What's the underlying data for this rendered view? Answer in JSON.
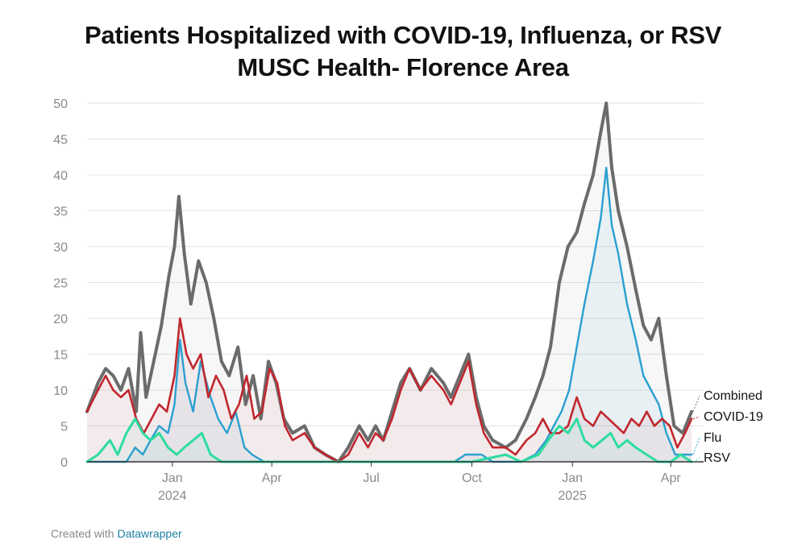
{
  "title_line1": "Patients Hospitalized with COVID-19, Influenza, or RSV",
  "title_line2": "MUSC Health- Florence Area",
  "footer": {
    "prefix": "Created with ",
    "brand": "Datawrapper"
  },
  "colors": {
    "Combined": "#6b6b6b",
    "COVID-19": "#c0272d",
    "Flu": "#2a9fd0",
    "RSV": "#2ddc9f",
    "grid": "#e3e3e3",
    "axis": "#333333"
  },
  "chart_data": {
    "type": "line",
    "title": "Patients Hospitalized with COVID-19, Influenza, or RSV",
    "subtitle": "MUSC Health- Florence Area",
    "x_start": "2023-10-15",
    "x_end": "2025-04-20",
    "ylim": [
      0,
      50
    ],
    "yticks": [
      0,
      5,
      10,
      15,
      20,
      25,
      30,
      35,
      40,
      45,
      50
    ],
    "xticks": [
      {
        "date": "2024-01-01",
        "label": "Jan",
        "sub": "2024"
      },
      {
        "date": "2024-04-01",
        "label": "Apr",
        "sub": ""
      },
      {
        "date": "2024-07-01",
        "label": "Jul",
        "sub": ""
      },
      {
        "date": "2024-10-01",
        "label": "Oct",
        "sub": ""
      },
      {
        "date": "2025-01-01",
        "label": "Jan",
        "sub": "2025"
      },
      {
        "date": "2025-04-01",
        "label": "Apr",
        "sub": ""
      }
    ],
    "grid": true,
    "legend": "direct labels at right",
    "series": [
      {
        "name": "Combined",
        "points": [
          [
            "2023-10-15",
            7
          ],
          [
            "2023-10-25",
            11
          ],
          [
            "2023-11-01",
            13
          ],
          [
            "2023-11-08",
            12
          ],
          [
            "2023-11-15",
            10
          ],
          [
            "2023-11-22",
            13
          ],
          [
            "2023-11-29",
            7
          ],
          [
            "2023-12-03",
            18
          ],
          [
            "2023-12-08",
            9
          ],
          [
            "2023-12-15",
            14
          ],
          [
            "2023-12-22",
            19
          ],
          [
            "2023-12-29",
            26
          ],
          [
            "2024-01-03",
            30
          ],
          [
            "2024-01-07",
            37
          ],
          [
            "2024-01-12",
            29
          ],
          [
            "2024-01-18",
            22
          ],
          [
            "2024-01-25",
            28
          ],
          [
            "2024-02-01",
            25
          ],
          [
            "2024-02-08",
            20
          ],
          [
            "2024-02-15",
            14
          ],
          [
            "2024-02-22",
            12
          ],
          [
            "2024-03-01",
            16
          ],
          [
            "2024-03-08",
            8
          ],
          [
            "2024-03-15",
            12
          ],
          [
            "2024-03-22",
            6
          ],
          [
            "2024-03-29",
            14
          ],
          [
            "2024-04-05",
            11
          ],
          [
            "2024-04-12",
            6
          ],
          [
            "2024-04-20",
            4
          ],
          [
            "2024-05-01",
            5
          ],
          [
            "2024-05-10",
            2
          ],
          [
            "2024-05-20",
            1
          ],
          [
            "2024-06-01",
            0
          ],
          [
            "2024-06-10",
            2
          ],
          [
            "2024-06-20",
            5
          ],
          [
            "2024-06-28",
            3
          ],
          [
            "2024-07-05",
            5
          ],
          [
            "2024-07-12",
            3
          ],
          [
            "2024-07-20",
            7
          ],
          [
            "2024-07-28",
            11
          ],
          [
            "2024-08-05",
            13
          ],
          [
            "2024-08-15",
            10
          ],
          [
            "2024-08-25",
            13
          ],
          [
            "2024-09-05",
            11
          ],
          [
            "2024-09-12",
            9
          ],
          [
            "2024-09-20",
            12
          ],
          [
            "2024-09-28",
            15
          ],
          [
            "2024-10-05",
            9
          ],
          [
            "2024-10-12",
            5
          ],
          [
            "2024-10-20",
            3
          ],
          [
            "2024-11-01",
            2
          ],
          [
            "2024-11-10",
            3
          ],
          [
            "2024-11-20",
            6
          ],
          [
            "2024-11-28",
            9
          ],
          [
            "2024-12-05",
            12
          ],
          [
            "2024-12-12",
            16
          ],
          [
            "2024-12-20",
            25
          ],
          [
            "2024-12-28",
            30
          ],
          [
            "2025-01-05",
            32
          ],
          [
            "2025-01-12",
            36
          ],
          [
            "2025-01-20",
            40
          ],
          [
            "2025-01-27",
            46
          ],
          [
            "2025-02-01",
            50
          ],
          [
            "2025-02-06",
            41
          ],
          [
            "2025-02-12",
            35
          ],
          [
            "2025-02-20",
            30
          ],
          [
            "2025-02-28",
            24
          ],
          [
            "2025-03-07",
            19
          ],
          [
            "2025-03-14",
            17
          ],
          [
            "2025-03-21",
            20
          ],
          [
            "2025-03-28",
            12
          ],
          [
            "2025-04-04",
            5
          ],
          [
            "2025-04-12",
            4
          ],
          [
            "2025-04-20",
            7
          ]
        ]
      },
      {
        "name": "COVID-19",
        "points": [
          [
            "2023-10-15",
            7
          ],
          [
            "2023-10-25",
            10
          ],
          [
            "2023-11-01",
            12
          ],
          [
            "2023-11-08",
            10
          ],
          [
            "2023-11-15",
            9
          ],
          [
            "2023-11-22",
            10
          ],
          [
            "2023-11-29",
            6
          ],
          [
            "2023-12-06",
            4
          ],
          [
            "2023-12-13",
            6
          ],
          [
            "2023-12-20",
            8
          ],
          [
            "2023-12-27",
            7
          ],
          [
            "2024-01-03",
            12
          ],
          [
            "2024-01-08",
            20
          ],
          [
            "2024-01-14",
            15
          ],
          [
            "2024-01-20",
            13
          ],
          [
            "2024-01-27",
            15
          ],
          [
            "2024-02-03",
            9
          ],
          [
            "2024-02-10",
            12
          ],
          [
            "2024-02-17",
            10
          ],
          [
            "2024-02-24",
            6
          ],
          [
            "2024-03-02",
            8
          ],
          [
            "2024-03-09",
            12
          ],
          [
            "2024-03-16",
            6
          ],
          [
            "2024-03-23",
            7
          ],
          [
            "2024-03-30",
            13
          ],
          [
            "2024-04-06",
            11
          ],
          [
            "2024-04-13",
            5
          ],
          [
            "2024-04-20",
            3
          ],
          [
            "2024-05-01",
            4
          ],
          [
            "2024-05-10",
            2
          ],
          [
            "2024-05-20",
            1
          ],
          [
            "2024-06-01",
            0
          ],
          [
            "2024-06-10",
            1
          ],
          [
            "2024-06-20",
            4
          ],
          [
            "2024-06-28",
            2
          ],
          [
            "2024-07-05",
            4
          ],
          [
            "2024-07-12",
            3
          ],
          [
            "2024-07-20",
            6
          ],
          [
            "2024-07-28",
            10
          ],
          [
            "2024-08-05",
            13
          ],
          [
            "2024-08-15",
            10
          ],
          [
            "2024-08-25",
            12
          ],
          [
            "2024-09-05",
            10
          ],
          [
            "2024-09-12",
            8
          ],
          [
            "2024-09-20",
            11
          ],
          [
            "2024-09-28",
            14
          ],
          [
            "2024-10-05",
            8
          ],
          [
            "2024-10-12",
            4
          ],
          [
            "2024-10-20",
            2
          ],
          [
            "2024-11-01",
            2
          ],
          [
            "2024-11-10",
            1
          ],
          [
            "2024-11-20",
            3
          ],
          [
            "2024-11-28",
            4
          ],
          [
            "2024-12-05",
            6
          ],
          [
            "2024-12-12",
            4
          ],
          [
            "2024-12-20",
            4
          ],
          [
            "2024-12-28",
            5
          ],
          [
            "2025-01-05",
            9
          ],
          [
            "2025-01-12",
            6
          ],
          [
            "2025-01-20",
            5
          ],
          [
            "2025-01-27",
            7
          ],
          [
            "2025-02-03",
            6
          ],
          [
            "2025-02-10",
            5
          ],
          [
            "2025-02-17",
            4
          ],
          [
            "2025-02-24",
            6
          ],
          [
            "2025-03-03",
            5
          ],
          [
            "2025-03-10",
            7
          ],
          [
            "2025-03-17",
            5
          ],
          [
            "2025-03-24",
            6
          ],
          [
            "2025-03-31",
            5
          ],
          [
            "2025-04-07",
            2
          ],
          [
            "2025-04-14",
            4
          ],
          [
            "2025-04-20",
            6
          ]
        ]
      },
      {
        "name": "Flu",
        "points": [
          [
            "2023-10-15",
            0
          ],
          [
            "2023-11-20",
            0
          ],
          [
            "2023-11-28",
            2
          ],
          [
            "2023-12-05",
            1
          ],
          [
            "2023-12-12",
            3
          ],
          [
            "2023-12-20",
            5
          ],
          [
            "2023-12-28",
            4
          ],
          [
            "2024-01-03",
            8
          ],
          [
            "2024-01-08",
            17
          ],
          [
            "2024-01-13",
            11
          ],
          [
            "2024-01-20",
            7
          ],
          [
            "2024-01-27",
            14
          ],
          [
            "2024-02-05",
            9
          ],
          [
            "2024-02-12",
            6
          ],
          [
            "2024-02-20",
            4
          ],
          [
            "2024-02-28",
            7
          ],
          [
            "2024-03-07",
            2
          ],
          [
            "2024-03-14",
            1
          ],
          [
            "2024-03-25",
            0
          ],
          [
            "2024-04-15",
            0
          ],
          [
            "2024-05-15",
            0
          ],
          [
            "2024-06-15",
            0
          ],
          [
            "2024-07-15",
            0
          ],
          [
            "2024-08-15",
            0
          ],
          [
            "2024-09-15",
            0
          ],
          [
            "2024-09-25",
            1
          ],
          [
            "2024-10-10",
            1
          ],
          [
            "2024-10-20",
            0
          ],
          [
            "2024-11-15",
            0
          ],
          [
            "2024-11-28",
            1
          ],
          [
            "2024-12-08",
            3
          ],
          [
            "2024-12-15",
            5
          ],
          [
            "2024-12-22",
            7
          ],
          [
            "2024-12-29",
            10
          ],
          [
            "2025-01-05",
            16
          ],
          [
            "2025-01-12",
            22
          ],
          [
            "2025-01-20",
            28
          ],
          [
            "2025-01-27",
            34
          ],
          [
            "2025-02-01",
            41
          ],
          [
            "2025-02-06",
            33
          ],
          [
            "2025-02-12",
            29
          ],
          [
            "2025-02-20",
            22
          ],
          [
            "2025-02-28",
            17
          ],
          [
            "2025-03-07",
            12
          ],
          [
            "2025-03-14",
            10
          ],
          [
            "2025-03-21",
            8
          ],
          [
            "2025-03-28",
            4
          ],
          [
            "2025-04-05",
            1
          ],
          [
            "2025-04-20",
            1
          ]
        ]
      },
      {
        "name": "RSV",
        "points": [
          [
            "2023-10-15",
            0
          ],
          [
            "2023-10-25",
            1
          ],
          [
            "2023-11-05",
            3
          ],
          [
            "2023-11-12",
            1
          ],
          [
            "2023-11-20",
            4
          ],
          [
            "2023-11-28",
            6
          ],
          [
            "2023-12-05",
            4
          ],
          [
            "2023-12-12",
            3
          ],
          [
            "2023-12-20",
            4
          ],
          [
            "2023-12-28",
            2
          ],
          [
            "2024-01-05",
            1
          ],
          [
            "2024-01-12",
            2
          ],
          [
            "2024-01-20",
            3
          ],
          [
            "2024-01-28",
            4
          ],
          [
            "2024-02-05",
            1
          ],
          [
            "2024-02-15",
            0
          ],
          [
            "2024-03-01",
            0
          ],
          [
            "2024-04-01",
            0
          ],
          [
            "2024-05-01",
            0
          ],
          [
            "2024-06-01",
            0
          ],
          [
            "2024-07-01",
            0
          ],
          [
            "2024-08-01",
            0
          ],
          [
            "2024-09-01",
            0
          ],
          [
            "2024-10-01",
            0
          ],
          [
            "2024-11-01",
            1
          ],
          [
            "2024-11-15",
            0
          ],
          [
            "2024-12-01",
            1
          ],
          [
            "2024-12-10",
            3
          ],
          [
            "2024-12-20",
            5
          ],
          [
            "2024-12-28",
            4
          ],
          [
            "2025-01-05",
            6
          ],
          [
            "2025-01-12",
            3
          ],
          [
            "2025-01-20",
            2
          ],
          [
            "2025-01-28",
            3
          ],
          [
            "2025-02-05",
            4
          ],
          [
            "2025-02-12",
            2
          ],
          [
            "2025-02-20",
            3
          ],
          [
            "2025-02-28",
            2
          ],
          [
            "2025-03-10",
            1
          ],
          [
            "2025-03-20",
            0
          ],
          [
            "2025-04-01",
            0
          ],
          [
            "2025-04-10",
            1
          ],
          [
            "2025-04-20",
            0
          ]
        ]
      }
    ]
  }
}
